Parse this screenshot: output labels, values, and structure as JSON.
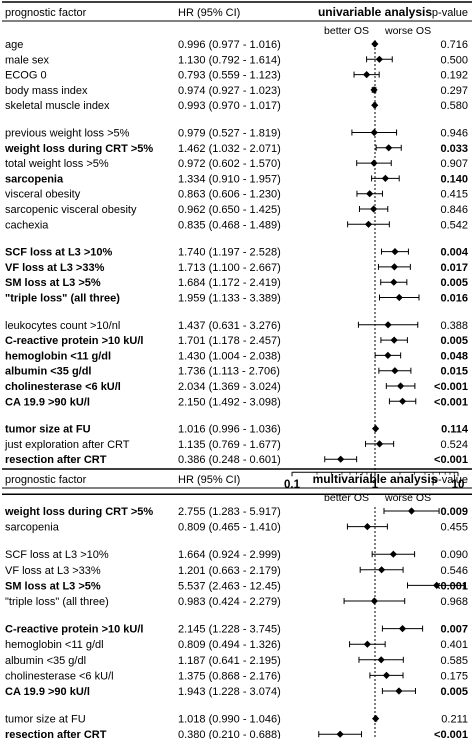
{
  "chart_data": [
    {
      "type": "forest",
      "title": "univariable analysis",
      "columns": {
        "factor": "prognostic factor",
        "hr": "HR (95% CI)",
        "p": "p-value"
      },
      "direction_labels": {
        "left": "better OS",
        "right": "worse OS"
      },
      "x_scale": "log",
      "xlim": [
        0.1,
        10
      ],
      "x_ticks": [
        "0.1",
        "1",
        "10"
      ],
      "reference_line": 1,
      "rows": [
        {
          "label": "age",
          "bold": false,
          "hr": 0.996,
          "lo": 0.977,
          "hi": 1.016,
          "hr_text": "0.996 (0.977 - 1.016)",
          "p": "0.716"
        },
        {
          "label": "male sex",
          "bold": false,
          "hr": 1.13,
          "lo": 0.792,
          "hi": 1.614,
          "hr_text": "1.130 (0.792 - 1.614)",
          "p": "0.500"
        },
        {
          "label": "ECOG 0",
          "bold": false,
          "hr": 0.793,
          "lo": 0.559,
          "hi": 1.123,
          "hr_text": "0.793 (0.559 - 1.123)",
          "p": "0.192"
        },
        {
          "label": "body mass index",
          "bold": false,
          "hr": 0.974,
          "lo": 0.927,
          "hi": 1.023,
          "hr_text": "0.974 (0.927 - 1.023)",
          "p": "0.297"
        },
        {
          "label": "skeletal muscle index",
          "bold": false,
          "hr": 0.993,
          "lo": 0.97,
          "hi": 1.017,
          "hr_text": "0.993 (0.970 - 1.017)",
          "p": "0.580"
        },
        {
          "label": "previous weight loss >5%",
          "bold": false,
          "hr": 0.979,
          "lo": 0.527,
          "hi": 1.819,
          "hr_text": "0.979 (0.527 - 1.819)",
          "p": "0.946"
        },
        {
          "label": "weight loss during CRT >5%",
          "bold": true,
          "hr": 1.462,
          "lo": 1.032,
          "hi": 2.071,
          "hr_text": "1.462 (1.032 - 2.071)",
          "p": "0.033"
        },
        {
          "label": "total weight loss >5%",
          "bold": false,
          "hr": 0.972,
          "lo": 0.602,
          "hi": 1.57,
          "hr_text": "0.972 (0.602 - 1.570)",
          "p": "0.907"
        },
        {
          "label": "sarcopenia",
          "bold": true,
          "hr": 1.334,
          "lo": 0.91,
          "hi": 1.957,
          "hr_text": "1.334 (0.910 - 1.957)",
          "p": "0.140"
        },
        {
          "label": "visceral obesity",
          "bold": false,
          "hr": 0.863,
          "lo": 0.606,
          "hi": 1.23,
          "hr_text": "0.863 (0.606 - 1.230)",
          "p": "0.415"
        },
        {
          "label": "sarcopenic visceral obesity",
          "bold": false,
          "hr": 0.962,
          "lo": 0.65,
          "hi": 1.425,
          "hr_text": "0.962 (0.650 - 1.425)",
          "p": "0.846"
        },
        {
          "label": "cachexia",
          "bold": false,
          "hr": 0.835,
          "lo": 0.468,
          "hi": 1.489,
          "hr_text": "0.835 (0.468 - 1.489)",
          "p": "0.542"
        },
        {
          "label": "SCF loss at L3 >10%",
          "bold": true,
          "hr": 1.74,
          "lo": 1.197,
          "hi": 2.528,
          "hr_text": "1.740 (1.197 - 2.528)",
          "p": "0.004"
        },
        {
          "label": "VF loss at L3 >33%",
          "bold": true,
          "hr": 1.713,
          "lo": 1.1,
          "hi": 2.667,
          "hr_text": "1.713 (1.100 - 2.667)",
          "p": "0.017"
        },
        {
          "label": "SM loss at L3 >5%",
          "bold": true,
          "hr": 1.684,
          "lo": 1.172,
          "hi": 2.419,
          "hr_text": "1.684 (1.172 - 2.419)",
          "p": "0.005"
        },
        {
          "label": "\"triple loss\" (all three)",
          "bold": true,
          "hr": 1.959,
          "lo": 1.133,
          "hi": 3.389,
          "hr_text": "1.959 (1.133 - 3.389)",
          "p": "0.016"
        },
        {
          "label": "leukocytes count >10/nl",
          "bold": false,
          "hr": 1.437,
          "lo": 0.631,
          "hi": 3.276,
          "hr_text": "1.437 (0.631 - 3.276)",
          "p": "0.388"
        },
        {
          "label": "C-reactive protein >10 kU/l",
          "bold": true,
          "hr": 1.701,
          "lo": 1.178,
          "hi": 2.457,
          "hr_text": "1.701 (1.178 - 2.457)",
          "p": "0.005"
        },
        {
          "label": "hemoglobin <11 g/dl",
          "bold": true,
          "hr": 1.43,
          "lo": 1.004,
          "hi": 2.038,
          "hr_text": "1.430 (1.004 - 2.038)",
          "p": "0.048"
        },
        {
          "label": "albumin <35 g/dl",
          "bold": true,
          "hr": 1.736,
          "lo": 1.113,
          "hi": 2.706,
          "hr_text": "1.736 (1.113 - 2.706)",
          "p": "0.015"
        },
        {
          "label": "cholinesterase <6 kU/l",
          "bold": true,
          "hr": 2.034,
          "lo": 1.369,
          "hi": 3.024,
          "hr_text": "2.034 (1.369 - 3.024)",
          "p": "<0.001"
        },
        {
          "label": "CA 19.9 >90 kU/l",
          "bold": true,
          "hr": 2.15,
          "lo": 1.492,
          "hi": 3.098,
          "hr_text": "2.150 (1.492 - 3.098)",
          "p": "<0.001"
        },
        {
          "label": "tumor size at FU",
          "bold": true,
          "hr": 1.016,
          "lo": 0.996,
          "hi": 1.036,
          "hr_text": "1.016 (0.996 - 1.036)",
          "p": "0.114"
        },
        {
          "label": "just exploration after CRT",
          "bold": false,
          "hr": 1.135,
          "lo": 0.769,
          "hi": 1.677,
          "hr_text": "1.135 (0.769 - 1.677)",
          "p": "0.524"
        },
        {
          "label": "resection after CRT",
          "bold": true,
          "hr": 0.386,
          "lo": 0.248,
          "hi": 0.601,
          "hr_text": "0.386 (0.248 - 0.601)",
          "p": "<0.001"
        }
      ]
    },
    {
      "type": "forest",
      "title": "multivariable analysis",
      "columns": {
        "factor": "prognostic factor",
        "hr": "HR (95% CI)",
        "p": "p-value"
      },
      "direction_labels": {
        "left": "better OS",
        "right": "worse OS"
      },
      "x_scale": "log",
      "xlim": [
        0.1,
        10
      ],
      "x_ticks": [
        "0.1",
        "1",
        "10"
      ],
      "reference_line": 1,
      "rows": [
        {
          "label": "weight loss during CRT >5%",
          "bold": true,
          "hr": 2.755,
          "lo": 1.283,
          "hi": 5.917,
          "hr_text": "2.755 (1.283 - 5.917)",
          "p": "0.009"
        },
        {
          "label": "sarcopenia",
          "bold": false,
          "hr": 0.809,
          "lo": 0.465,
          "hi": 1.41,
          "hr_text": "0.809 (0.465 - 1.410)",
          "p": "0.455"
        },
        {
          "label": "SCF loss at L3 >10%",
          "bold": false,
          "hr": 1.664,
          "lo": 0.924,
          "hi": 2.999,
          "hr_text": "1.664 (0.924 - 2.999)",
          "p": "0.090"
        },
        {
          "label": "VF loss at L3 >33%",
          "bold": false,
          "hr": 1.201,
          "lo": 0.663,
          "hi": 2.179,
          "hr_text": "1.201 (0.663 - 2.179)",
          "p": "0.546"
        },
        {
          "label": "SM loss at L3 >5%",
          "bold": true,
          "hr": 5.537,
          "lo": 2.463,
          "hi": 12.45,
          "hr_text": "5.537 (2.463 - 12.45)",
          "p": "<0.001"
        },
        {
          "label": "\"triple loss\" (all three)",
          "bold": false,
          "hr": 0.983,
          "lo": 0.424,
          "hi": 2.279,
          "hr_text": "0.983 (0.424 - 2.279)",
          "p": "0.968"
        },
        {
          "label": "C-reactive protein >10 kU/l",
          "bold": true,
          "hr": 2.145,
          "lo": 1.228,
          "hi": 3.745,
          "hr_text": "2.145 (1.228 - 3.745)",
          "p": "0.007"
        },
        {
          "label": "hemoglobin <11 g/dl",
          "bold": false,
          "hr": 0.809,
          "lo": 0.494,
          "hi": 1.326,
          "hr_text": "0.809 (0.494 - 1.326)",
          "p": "0.401"
        },
        {
          "label": "albumin <35 g/dl",
          "bold": false,
          "hr": 1.187,
          "lo": 0.641,
          "hi": 2.195,
          "hr_text": "1.187 (0.641 - 2.195)",
          "p": "0.585"
        },
        {
          "label": "cholinesterase <6 kU/l",
          "bold": false,
          "hr": 1.375,
          "lo": 0.868,
          "hi": 2.176,
          "hr_text": "1.375 (0.868 - 2.176)",
          "p": "0.175"
        },
        {
          "label": "CA 19.9 >90 kU/l",
          "bold": true,
          "hr": 1.943,
          "lo": 1.228,
          "hi": 3.074,
          "hr_text": "1.943 (1.228 - 3.074)",
          "p": "0.005"
        },
        {
          "label": "tumor size at FU",
          "bold": false,
          "hr": 1.018,
          "lo": 0.99,
          "hi": 1.046,
          "hr_text": "1.018 (0.990 - 1.046)",
          "p": "0.211"
        },
        {
          "label": "resection after CRT",
          "bold": true,
          "hr": 0.38,
          "lo": 0.21,
          "hi": 0.688,
          "hr_text": "0.380 (0.210 - 0.688)",
          "p": "<0.001"
        }
      ]
    }
  ]
}
